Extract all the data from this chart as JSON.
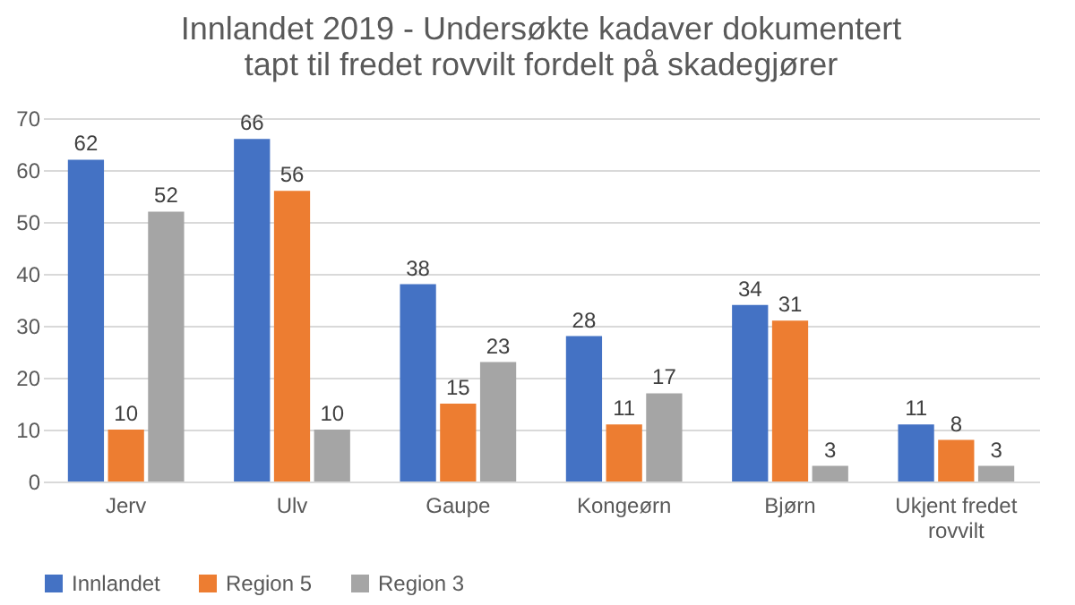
{
  "chart_data": {
    "type": "bar",
    "title": "Innlandet 2019 - Undersøkte kadaver dokumentert tapt til fredet rovvilt fordelt på skadegjører",
    "categories": [
      "Jerv",
      "Ulv",
      "Gaupe",
      "Kongeørn",
      "Bjørn",
      "Ukjent fredet rovvilt"
    ],
    "series": [
      {
        "name": "Innlandet",
        "color": "#4472c4",
        "values": [
          62,
          66,
          38,
          28,
          34,
          11
        ]
      },
      {
        "name": "Region 5",
        "color": "#ed7d31",
        "values": [
          10,
          56,
          15,
          11,
          31,
          8
        ]
      },
      {
        "name": "Region 3",
        "color": "#a5a5a5",
        "values": [
          52,
          10,
          23,
          17,
          3,
          3
        ]
      }
    ],
    "ylim": [
      0,
      70
    ],
    "yticks": [
      0,
      10,
      20,
      30,
      40,
      50,
      60,
      70
    ],
    "grid": "y",
    "legend": "bottom",
    "data_labels": true
  }
}
